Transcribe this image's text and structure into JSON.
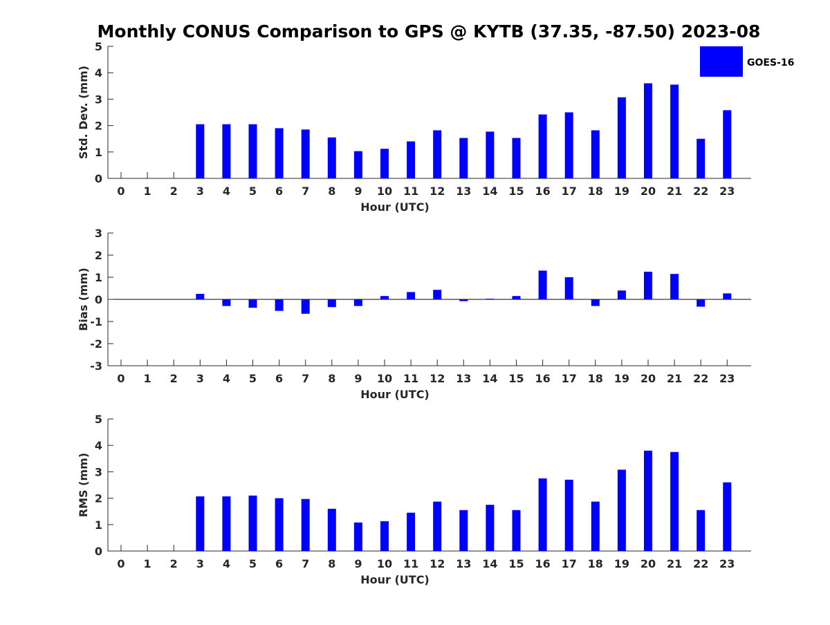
{
  "title": "Monthly CONUS Comparison to GPS @ KYTB (37.35, -87.50) 2023-08",
  "legend": {
    "label": "GOES-16",
    "position": "top-right"
  },
  "colors": {
    "bar": "#0000ff",
    "axis": "#262626",
    "title": "#000000"
  },
  "chart_data": [
    {
      "type": "bar",
      "title": "Monthly CONUS Comparison to GPS @ KYTB (37.35, -87.50) 2023-08",
      "xlabel": "Hour (UTC)",
      "ylabel": "Std. Dev. (mm)",
      "ylim": [
        0,
        5
      ],
      "yticks": [
        "0",
        "1",
        "2",
        "3",
        "4",
        "5"
      ],
      "categories": [
        "0",
        "1",
        "2",
        "3",
        "4",
        "5",
        "6",
        "7",
        "8",
        "9",
        "10",
        "11",
        "12",
        "13",
        "14",
        "15",
        "16",
        "17",
        "18",
        "19",
        "20",
        "21",
        "22",
        "23"
      ],
      "series": [
        {
          "name": "GOES-16",
          "values": [
            null,
            null,
            null,
            2.05,
            2.05,
            2.05,
            1.9,
            1.85,
            1.55,
            1.03,
            1.12,
            1.4,
            1.82,
            1.53,
            1.77,
            1.53,
            2.42,
            2.5,
            1.82,
            3.07,
            3.6,
            3.55,
            1.5,
            2.58
          ]
        }
      ]
    },
    {
      "type": "bar",
      "xlabel": "Hour (UTC)",
      "ylabel": "Bias (mm)",
      "ylim": [
        -3,
        3
      ],
      "yticks": [
        "-3",
        "-2",
        "-1",
        "0",
        "1",
        "2",
        "3"
      ],
      "categories": [
        "0",
        "1",
        "2",
        "3",
        "4",
        "5",
        "6",
        "7",
        "8",
        "9",
        "10",
        "11",
        "12",
        "13",
        "14",
        "15",
        "16",
        "17",
        "18",
        "19",
        "20",
        "21",
        "22",
        "23"
      ],
      "series": [
        {
          "name": "GOES-16",
          "values": [
            null,
            null,
            null,
            0.25,
            -0.3,
            -0.38,
            -0.52,
            -0.65,
            -0.35,
            -0.3,
            0.15,
            0.33,
            0.43,
            -0.08,
            0.03,
            0.15,
            1.3,
            1.0,
            -0.3,
            0.4,
            1.25,
            1.15,
            -0.33,
            0.27
          ]
        }
      ]
    },
    {
      "type": "bar",
      "xlabel": "Hour (UTC)",
      "ylabel": "RMS (mm)",
      "ylim": [
        0,
        5
      ],
      "yticks": [
        "0",
        "1",
        "2",
        "3",
        "4",
        "5"
      ],
      "categories": [
        "0",
        "1",
        "2",
        "3",
        "4",
        "5",
        "6",
        "7",
        "8",
        "9",
        "10",
        "11",
        "12",
        "13",
        "14",
        "15",
        "16",
        "17",
        "18",
        "19",
        "20",
        "21",
        "22",
        "23"
      ],
      "series": [
        {
          "name": "GOES-16",
          "values": [
            null,
            null,
            null,
            2.07,
            2.07,
            2.1,
            2.0,
            1.97,
            1.6,
            1.08,
            1.13,
            1.45,
            1.87,
            1.55,
            1.75,
            1.55,
            2.75,
            2.7,
            1.87,
            3.08,
            3.8,
            3.75,
            1.55,
            2.6
          ]
        }
      ]
    }
  ]
}
